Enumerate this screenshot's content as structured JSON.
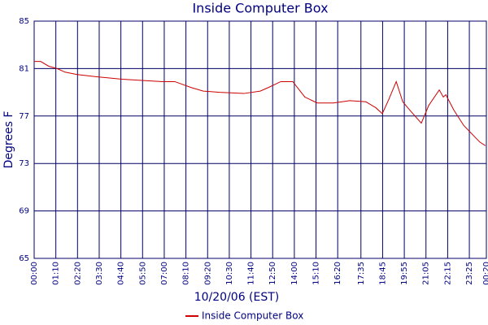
{
  "chart_data": {
    "type": "line",
    "title": "Inside Computer Box",
    "x_label": "10/20/06 (EST)",
    "y_label": "Degrees F",
    "x": [
      0,
      21,
      47,
      74,
      100,
      139,
      205,
      284,
      349,
      415,
      454,
      507,
      546,
      599,
      677,
      730,
      756,
      796,
      835,
      856,
      874,
      914,
      966,
      1019,
      1071,
      1103,
      1124,
      1145,
      1169,
      1190,
      1216,
      1250,
      1274,
      1308,
      1321,
      1329,
      1355,
      1387,
      1413,
      1439,
      1457
    ],
    "series": [
      {
        "name": "Inside Computer Box",
        "color": "#cc0000",
        "values": [
          81.6,
          81.6,
          81.2,
          81.0,
          80.7,
          80.5,
          80.3,
          80.1,
          80.0,
          79.9,
          79.9,
          79.4,
          79.1,
          79.0,
          78.9,
          79.1,
          79.4,
          79.9,
          79.9,
          79.2,
          78.6,
          78.1,
          78.1,
          78.3,
          78.2,
          77.7,
          77.2,
          78.4,
          79.9,
          78.2,
          77.4,
          76.4,
          77.9,
          79.2,
          78.6,
          78.8,
          77.5,
          76.2,
          75.5,
          74.8,
          74.5
        ]
      }
    ],
    "xlim": [
      0,
      1460
    ],
    "xticks": [
      {
        "value": 0,
        "label": "00:00"
      },
      {
        "value": 70,
        "label": "01:10"
      },
      {
        "value": 140,
        "label": "02:20"
      },
      {
        "value": 210,
        "label": "03:30"
      },
      {
        "value": 280,
        "label": "04:40"
      },
      {
        "value": 350,
        "label": "05:50"
      },
      {
        "value": 420,
        "label": "07:00"
      },
      {
        "value": 490,
        "label": "08:10"
      },
      {
        "value": 560,
        "label": "09:20"
      },
      {
        "value": 630,
        "label": "10:30"
      },
      {
        "value": 700,
        "label": "11:40"
      },
      {
        "value": 770,
        "label": "12:50"
      },
      {
        "value": 840,
        "label": "14:00"
      },
      {
        "value": 910,
        "label": "15:10"
      },
      {
        "value": 980,
        "label": "16:20"
      },
      {
        "value": 1055,
        "label": "17:35"
      },
      {
        "value": 1125,
        "label": "18:45"
      },
      {
        "value": 1195,
        "label": "19:55"
      },
      {
        "value": 1265,
        "label": "21:05"
      },
      {
        "value": 1335,
        "label": "22:15"
      },
      {
        "value": 1405,
        "label": "23:25"
      },
      {
        "value": 1460,
        "label": "00:20"
      }
    ],
    "ylim": [
      65,
      85
    ],
    "yticks": [
      65,
      69,
      73,
      77,
      81,
      85
    ],
    "grid": true,
    "grid_color": "#000066",
    "legend": "bottom"
  }
}
